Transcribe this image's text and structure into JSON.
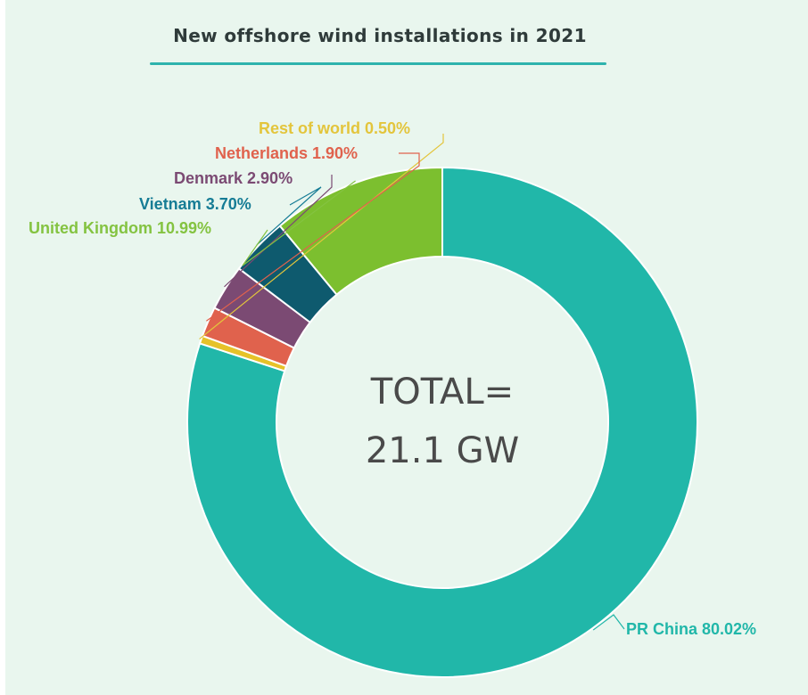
{
  "chart_data": {
    "type": "pie",
    "title": "New offshore wind installations in 2021",
    "center_text": [
      "TOTAL=",
      "21.1 GW"
    ],
    "categories": [
      "PR China",
      "Rest of world",
      "Netherlands",
      "Denmark",
      "Vietnam",
      "United Kingdom"
    ],
    "values": [
      80.02,
      0.5,
      1.9,
      2.9,
      3.7,
      10.99
    ],
    "labels": [
      "PR China 80.02%",
      "Rest of world 0.50%",
      "Netherlands 1.90%",
      "Denmark 2.90%",
      "Vietnam 3.70%",
      "United Kingdom 10.99%"
    ],
    "colors": [
      "#21b7a9",
      "#e6c229",
      "#e0624d",
      "#7b4a73",
      "#0e5a6e",
      "#7cbf2f"
    ],
    "label_colors": [
      "#21b7a9",
      "#e3c53c",
      "#e0624d",
      "#7b4a73",
      "#167c95",
      "#84c341"
    ],
    "legend": "none"
  }
}
